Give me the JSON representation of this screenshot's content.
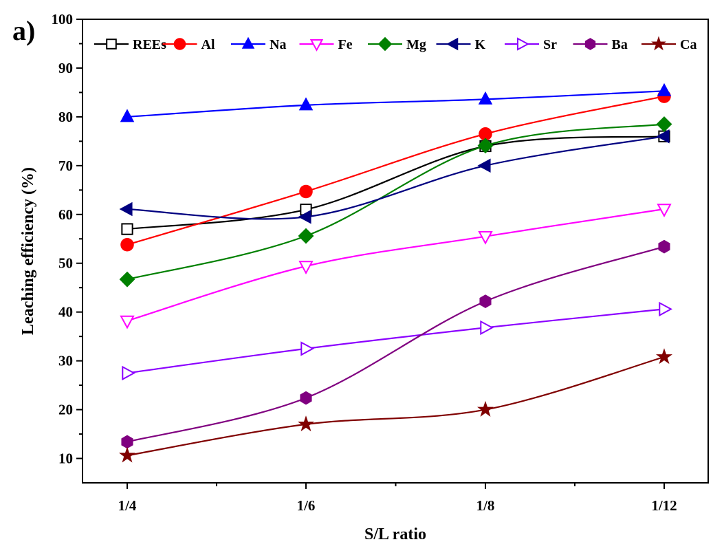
{
  "panel_label": "a)",
  "chart_data": {
    "type": "line",
    "xlabel": "S/L ratio",
    "ylabel": "Leaching efficiency (%)",
    "categories": [
      "1/4",
      "1/6",
      "1/8",
      "1/12"
    ],
    "ylim": [
      5,
      100
    ],
    "yticks": [
      10,
      20,
      30,
      40,
      50,
      60,
      70,
      80,
      90,
      100
    ],
    "grid": false,
    "legend": "top, single row",
    "series": [
      {
        "name": "REEs",
        "color": "#000000",
        "marker": "square-open",
        "values": [
          57,
          61,
          74,
          76
        ]
      },
      {
        "name": "Al",
        "color": "#ff0000",
        "marker": "circle-filled",
        "values": [
          53.8,
          64.7,
          76.5,
          84.2
        ]
      },
      {
        "name": "Na",
        "color": "#0000ff",
        "marker": "triangle-up-filled",
        "values": [
          80,
          82.4,
          83.6,
          85.3
        ]
      },
      {
        "name": "Fe",
        "color": "#ff00ff",
        "marker": "triangle-down-open",
        "values": [
          38.2,
          49.4,
          55.5,
          61.1
        ]
      },
      {
        "name": "Mg",
        "color": "#008000",
        "marker": "diamond-filled",
        "values": [
          46.7,
          55.6,
          74.1,
          78.5
        ]
      },
      {
        "name": "K",
        "color": "#000080",
        "marker": "triangle-left-filled",
        "values": [
          61.1,
          59.5,
          70,
          76
        ]
      },
      {
        "name": "Sr",
        "color": "#8b00ff",
        "marker": "triangle-right-open",
        "values": [
          27.5,
          32.5,
          36.8,
          40.6
        ]
      },
      {
        "name": "Ba",
        "color": "#800080",
        "marker": "hexagon-filled",
        "values": [
          13.4,
          22.4,
          42.2,
          53.4
        ]
      },
      {
        "name": "Ca",
        "color": "#800000",
        "marker": "star-filled",
        "values": [
          10.6,
          17,
          20,
          30.8
        ]
      }
    ]
  }
}
